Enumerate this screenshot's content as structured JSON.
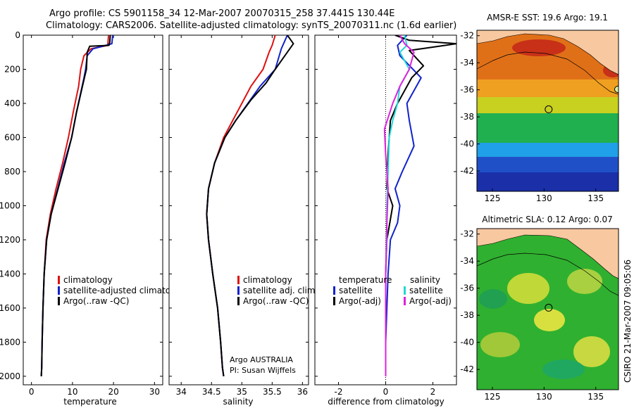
{
  "header": {
    "title_line1": "Argo profile: CS 5901158_34 12-Mar-2007 20070315_258 37.441S 130.44E",
    "title_line2": "Climatology: CARS2006. Satellite-adjusted climatology: synTS_20070311.nc (1.6d earlier)"
  },
  "stamp": "CSIRO 21-Mar-2007 09:05:06",
  "info": {
    "line1": "Argo AUSTRALIA",
    "line2": "PI: Susan Wijffels"
  },
  "colors": {
    "clim": "#dd1111",
    "sat": "#1122cc",
    "argo": "#000000",
    "sat_sal": "#22d8d8",
    "argo_sal": "#dd22dd"
  },
  "chart_data": [
    {
      "type": "line",
      "name": "temperature",
      "xlabel": "temperature",
      "xlim": [
        -2,
        32
      ],
      "ylim": [
        0,
        2050
      ],
      "y_reversed": true,
      "xticks": [
        "0",
        "10",
        "20",
        "30"
      ],
      "yticks": [
        "0",
        "200",
        "400",
        "600",
        "800",
        "1000",
        "1200",
        "1400",
        "1600",
        "1800",
        "2000"
      ],
      "legend": [
        "climatology",
        "satellite-adjusted climatology",
        "Argo(..raw -QC)"
      ],
      "series": [
        {
          "name": "climatology",
          "color": "clim",
          "x": [
            18.8,
            18.6,
            14.5,
            12.8,
            12.0,
            11.5,
            10.2,
            9.0,
            7.6,
            6.0,
            4.6,
            3.6,
            3.1,
            2.8,
            2.6,
            2.5,
            2.4
          ],
          "y": [
            0,
            60,
            80,
            120,
            200,
            300,
            450,
            600,
            750,
            900,
            1050,
            1200,
            1400,
            1600,
            1800,
            1950,
            2000
          ]
        },
        {
          "name": "satellite-adjusted climatology",
          "color": "sat",
          "x": [
            19.8,
            19.6,
            15.0,
            13.6,
            13.2,
            12.8,
            11.0,
            9.8,
            8.0,
            6.4,
            4.8,
            3.7,
            3.1,
            2.8,
            2.6,
            2.5,
            2.4
          ],
          "y": [
            0,
            50,
            80,
            120,
            200,
            250,
            450,
            600,
            750,
            900,
            1050,
            1200,
            1400,
            1600,
            1800,
            1950,
            2000
          ]
        },
        {
          "name": "Argo(..raw -QC)",
          "color": "argo",
          "x": [
            19.2,
            19.1,
            18.9,
            14.2,
            13.6,
            13.4,
            12.9,
            11.0,
            9.8,
            8.2,
            6.5,
            4.8,
            3.7,
            3.1,
            2.8,
            2.6,
            2.5,
            2.4
          ],
          "y": [
            0,
            40,
            60,
            65,
            100,
            200,
            250,
            450,
            600,
            750,
            900,
            1050,
            1200,
            1400,
            1600,
            1800,
            1950,
            2000
          ]
        }
      ]
    },
    {
      "type": "line",
      "name": "salinity",
      "xlabel": "salinity",
      "xlim": [
        33.8,
        36.1
      ],
      "ylim": [
        0,
        2050
      ],
      "y_reversed": true,
      "xticks": [
        "34",
        "34.5",
        "35",
        "35.5",
        "36"
      ],
      "legend": [
        "climatology",
        "satellite adj. clim.",
        "Argo(..raw -QC)"
      ],
      "series": [
        {
          "name": "climatology",
          "color": "clim",
          "x": [
            35.55,
            35.5,
            35.45,
            35.35,
            35.15,
            35.0,
            34.85,
            34.7,
            34.55,
            34.45,
            34.42,
            34.45,
            34.52,
            34.6,
            34.65,
            34.68,
            34.7
          ],
          "y": [
            0,
            60,
            100,
            200,
            300,
            400,
            500,
            600,
            750,
            900,
            1050,
            1200,
            1400,
            1600,
            1800,
            1950,
            2000
          ]
        },
        {
          "name": "satellite adj. clim.",
          "color": "sat",
          "x": [
            35.75,
            35.7,
            35.65,
            35.55,
            35.3,
            35.1,
            34.9,
            34.72,
            34.55,
            34.45,
            34.42,
            34.45,
            34.52,
            34.6,
            34.65,
            34.68,
            34.7
          ],
          "y": [
            0,
            40,
            80,
            200,
            300,
            400,
            500,
            600,
            750,
            900,
            1050,
            1200,
            1400,
            1600,
            1800,
            1950,
            2000
          ]
        },
        {
          "name": "Argo(..raw -QC)",
          "color": "argo",
          "x": [
            35.75,
            35.85,
            35.75,
            35.55,
            35.4,
            35.15,
            34.9,
            34.72,
            34.55,
            34.45,
            34.42,
            34.45,
            34.52,
            34.6,
            34.65,
            34.68,
            34.7
          ],
          "y": [
            0,
            50,
            100,
            200,
            280,
            380,
            500,
            600,
            750,
            900,
            1050,
            1200,
            1400,
            1600,
            1800,
            1950,
            2000
          ]
        }
      ]
    },
    {
      "type": "line",
      "name": "difference",
      "xlabel": "difference from climatology",
      "xlim": [
        -3,
        3
      ],
      "ylim": [
        0,
        2050
      ],
      "y_reversed": true,
      "xticks": [
        "-2",
        "0",
        "2"
      ],
      "legend": [
        "temperature",
        "satellite",
        "Argo(-adj)",
        "salinity",
        "satellite",
        "Argo(-adj)"
      ],
      "series": [
        {
          "name": "temperature satellite",
          "color": "sat",
          "x": [
            0.9,
            0.5,
            0.6,
            1.5,
            0.9,
            1.0,
            1.2,
            0.7,
            0.4,
            0.6,
            0.5,
            0.2,
            0.1,
            0.05,
            0.0,
            0.0
          ],
          "y": [
            0,
            60,
            120,
            250,
            400,
            500,
            650,
            800,
            900,
            1000,
            1100,
            1200,
            1400,
            1600,
            1800,
            2000
          ]
        },
        {
          "name": "temperature Argo(-adj)",
          "color": "argo",
          "x": [
            0.4,
            1.0,
            3.0,
            2.0,
            1.0,
            1.6,
            1.1,
            0.5,
            0.2,
            0.1,
            0.05,
            0.3,
            0.05,
            0.0,
            0.0,
            0.0
          ],
          "y": [
            0,
            30,
            50,
            70,
            90,
            180,
            250,
            400,
            500,
            700,
            900,
            1000,
            1200,
            1400,
            1700,
            2000
          ]
        },
        {
          "name": "salinity satellite",
          "color": "sat_sal",
          "x": [
            0.8,
            0.9,
            0.6,
            1.0,
            0.6,
            0.5,
            0.3,
            0.15,
            0.1,
            0.05,
            0.05,
            0.0,
            0.0,
            0.0
          ],
          "y": [
            0,
            60,
            100,
            200,
            300,
            400,
            500,
            600,
            800,
            1000,
            1200,
            1400,
            1700,
            2000
          ]
        },
        {
          "name": "salinity Argo(-adj)",
          "color": "argo_sal",
          "x": [
            0.6,
            0.8,
            1.2,
            1.0,
            0.6,
            0.3,
            -0.05,
            0.0,
            0.1,
            0.05,
            0.0,
            0.0,
            0.0
          ],
          "y": [
            0,
            50,
            100,
            200,
            300,
            400,
            550,
            700,
            900,
            1100,
            1400,
            1700,
            2000
          ]
        }
      ]
    },
    {
      "type": "heatmap",
      "name": "sst_map",
      "title": "AMSR-E SST: 19.6 Argo: 19.1",
      "xlim": [
        123.5,
        137.2
      ],
      "ylim": [
        -43.5,
        -31.6
      ],
      "xticks": [
        "125",
        "130",
        "135"
      ],
      "yticks": [
        "-32",
        "-34",
        "-36",
        "-38",
        "-40",
        "-42"
      ],
      "float_position": {
        "lon": 130.44,
        "lat": -37.441
      }
    },
    {
      "type": "heatmap",
      "name": "sla_map",
      "title": "Altimetric SLA: 0.12 Argo: 0.07",
      "xlim": [
        123.5,
        137.2
      ],
      "ylim": [
        -43.5,
        -31.6
      ],
      "xticks": [
        "125",
        "130",
        "135"
      ],
      "yticks": [
        "-32",
        "-34",
        "-36",
        "-38",
        "-40",
        "-42"
      ],
      "float_position": {
        "lon": 130.44,
        "lat": -37.441
      }
    }
  ]
}
